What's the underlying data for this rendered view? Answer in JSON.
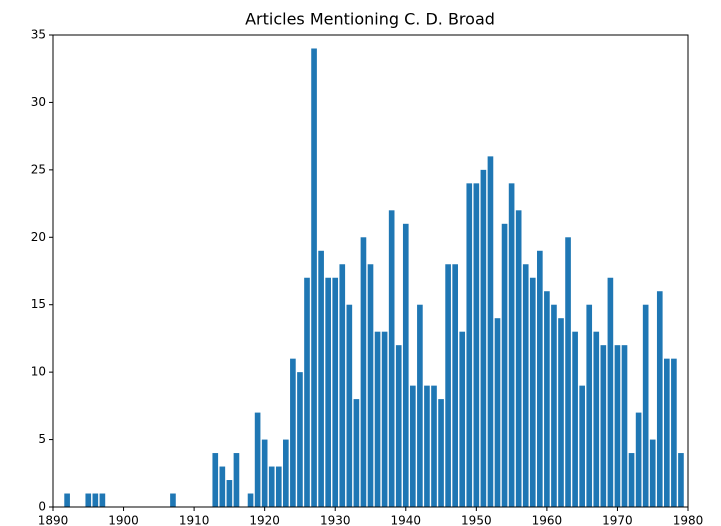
{
  "chart_data": {
    "type": "bar",
    "title": "Articles Mentioning C. D. Broad",
    "x": [
      1892,
      1895,
      1896,
      1897,
      1907,
      1913,
      1914,
      1915,
      1916,
      1918,
      1919,
      1920,
      1921,
      1922,
      1923,
      1924,
      1925,
      1926,
      1927,
      1928,
      1929,
      1930,
      1931,
      1932,
      1933,
      1934,
      1935,
      1936,
      1937,
      1938,
      1939,
      1940,
      1941,
      1942,
      1943,
      1944,
      1945,
      1946,
      1947,
      1948,
      1949,
      1950,
      1951,
      1952,
      1953,
      1954,
      1955,
      1956,
      1957,
      1958,
      1959,
      1960,
      1961,
      1962,
      1963,
      1964,
      1965,
      1966,
      1967,
      1968,
      1969,
      1970,
      1971,
      1972,
      1973,
      1974,
      1975,
      1976,
      1977,
      1978,
      1979
    ],
    "values": [
      1,
      1,
      1,
      1,
      1,
      4,
      3,
      2,
      4,
      1,
      7,
      5,
      3,
      3,
      5,
      11,
      10,
      17,
      34,
      19,
      17,
      17,
      18,
      15,
      8,
      20,
      18,
      13,
      13,
      22,
      12,
      21,
      9,
      15,
      9,
      9,
      8,
      18,
      18,
      13,
      24,
      24,
      25,
      26,
      14,
      21,
      24,
      22,
      18,
      17,
      19,
      16,
      15,
      14,
      20,
      13,
      9,
      15,
      13,
      12,
      17,
      12,
      12,
      4,
      7,
      15,
      5,
      16,
      11,
      11,
      4
    ],
    "color": "#1f77b4",
    "xlim": [
      1890,
      1980
    ],
    "xticks": [
      1890,
      1900,
      1910,
      1920,
      1930,
      1940,
      1950,
      1960,
      1970,
      1980
    ],
    "ylim": [
      0,
      35
    ],
    "yticks": [
      0,
      5,
      10,
      15,
      20,
      25,
      30,
      35
    ],
    "grid": false
  }
}
